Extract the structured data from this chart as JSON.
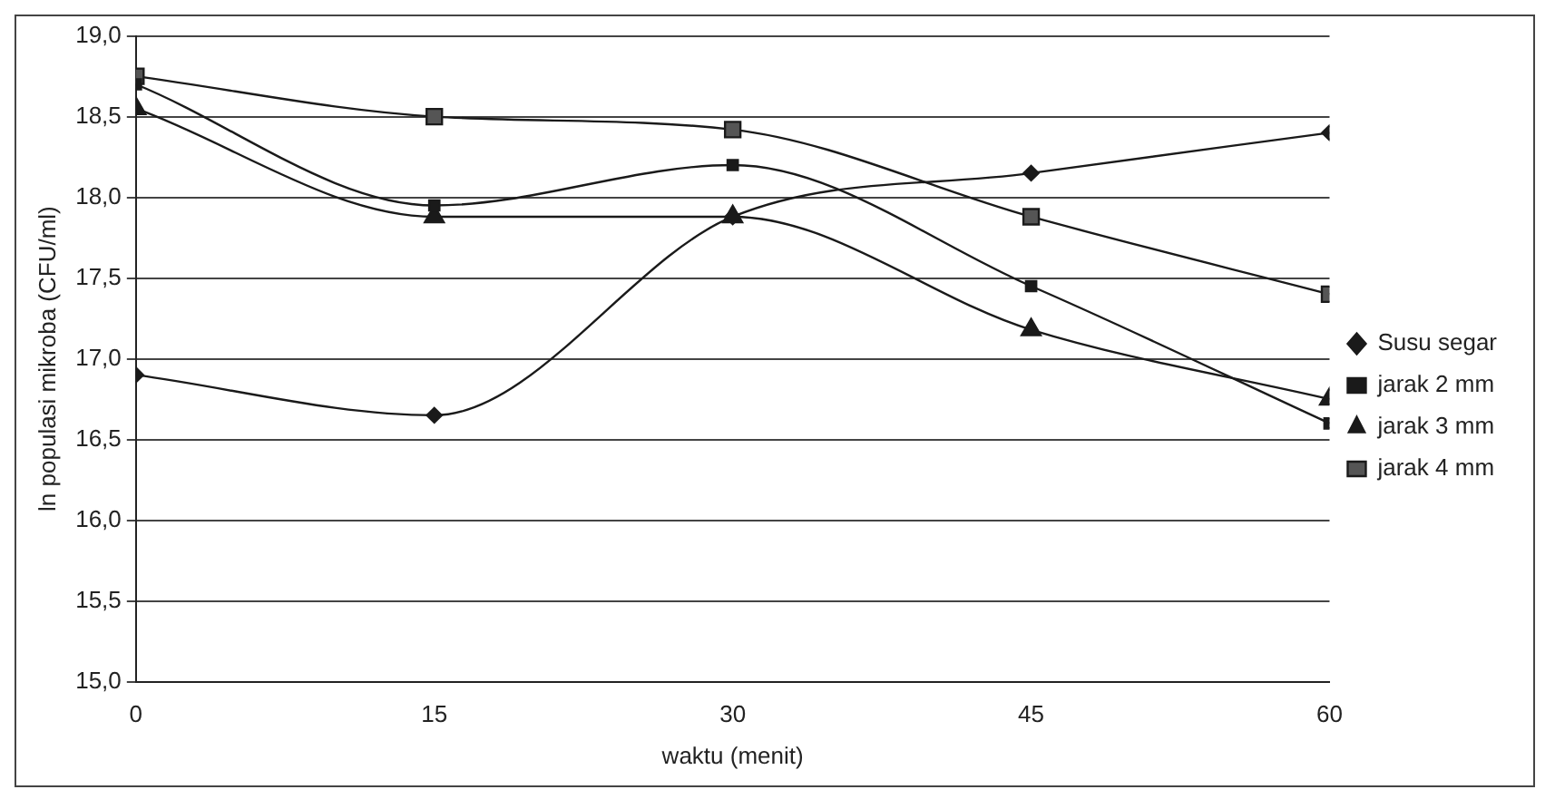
{
  "chart_data": {
    "type": "line",
    "xlabel": "waktu (menit)",
    "ylabel": "ln populasi mikroba (CFU/ml)",
    "x": [
      0,
      15,
      30,
      45,
      60
    ],
    "xlim": [
      0,
      60
    ],
    "xticks": [
      0,
      15,
      30,
      45,
      60
    ],
    "ylim": [
      15,
      19
    ],
    "yticks": [
      {
        "value": 15,
        "label": "15,0"
      },
      {
        "value": 15.5,
        "label": "15,5"
      },
      {
        "value": 16,
        "label": "16,0"
      },
      {
        "value": 16.5,
        "label": "16,5"
      },
      {
        "value": 17,
        "label": "17,0"
      },
      {
        "value": 17.5,
        "label": "17,5"
      },
      {
        "value": 18,
        "label": "18,0"
      },
      {
        "value": 18.5,
        "label": "18,5"
      },
      {
        "value": 19,
        "label": "19,0"
      }
    ],
    "grid": "y",
    "legend": "right",
    "series": [
      {
        "name": "Susu segar",
        "color": "#1a1a1a",
        "marker": "diamond",
        "values": [
          16.9,
          16.65,
          17.88,
          18.15,
          18.4
        ]
      },
      {
        "name": "jarak 2 mm",
        "color": "#1a1a1a",
        "marker": "square",
        "values": [
          18.7,
          17.95,
          18.2,
          17.45,
          16.6
        ]
      },
      {
        "name": "jarak 3 mm",
        "color": "#1a1a1a",
        "marker": "triangle",
        "values": [
          18.55,
          17.88,
          17.88,
          17.18,
          16.75
        ]
      },
      {
        "name": "jarak 4 mm",
        "color": "#1a1a1a",
        "marker": "square",
        "values": [
          18.75,
          18.5,
          18.42,
          17.88,
          17.4
        ]
      }
    ]
  }
}
